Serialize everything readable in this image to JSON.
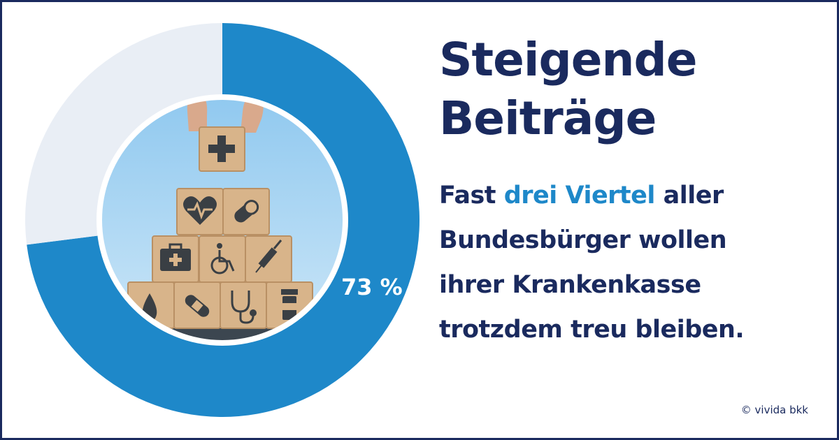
{
  "headline": {
    "line1": "Steigende",
    "line2": "Beiträge"
  },
  "body": {
    "line1_pre": "Fast ",
    "line1_highlight": "drei Viertel",
    "line1_post": " aller",
    "line2": "Bundesbürger wollen",
    "line3": "ihrer Krankenkasse",
    "line4": "trotzdem treu bleiben."
  },
  "copyright": "© vivida bkk",
  "colors": {
    "navy": "#1a2a5e",
    "accent_blue": "#1e88c9",
    "remainder_gray": "#e9eef5",
    "photo_sky": "#b9dcf3"
  },
  "photo_icons": [
    "plus-icon",
    "heart-icon",
    "pill-icon",
    "first-aid-kit-icon",
    "wheelchair-icon",
    "syringe-icon",
    "drop-icon",
    "bandage-icon",
    "stethoscope-icon",
    "pill-bottle-icon"
  ],
  "chart_data": {
    "type": "pie",
    "variant": "donut",
    "values": [
      73,
      27
    ],
    "labels": [
      "73 %",
      ""
    ],
    "colors": [
      "#1e88c9",
      "#e9eef5"
    ]
  }
}
